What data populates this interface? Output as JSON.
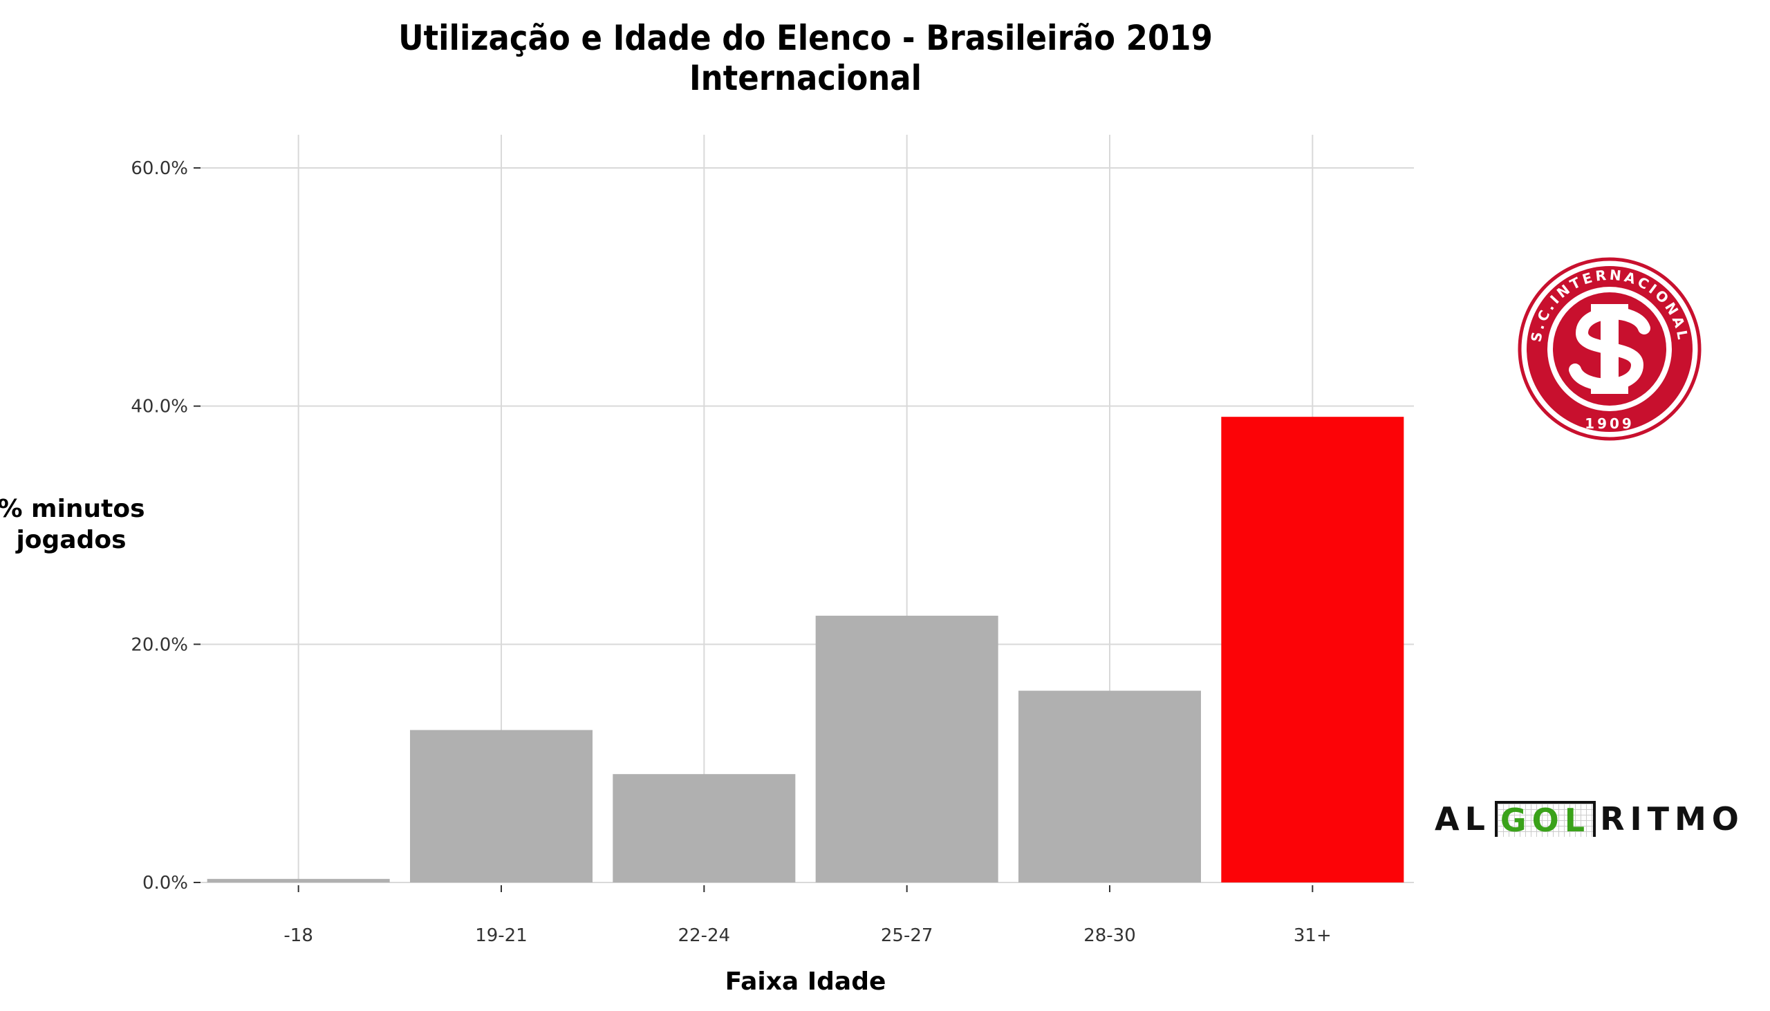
{
  "chart_data": {
    "type": "bar",
    "title": "Utilização e Idade do Elenco - Brasileirão 2019",
    "subtitle": "Internacional",
    "xlabel": "Faixa Idade",
    "ylabel_lines": [
      "% minutos",
      "jogados"
    ],
    "categories": [
      "-18",
      "19-21",
      "22-24",
      "25-27",
      "28-30",
      "31+"
    ],
    "values": [
      0.3,
      12.8,
      9.1,
      22.4,
      16.1,
      39.1
    ],
    "highlight_index": 5,
    "yticks": [
      0,
      20,
      40,
      60
    ],
    "ytick_labels": [
      "0.0%",
      "20.0%",
      "40.0%",
      "60.0%"
    ],
    "ylim": [
      0,
      63
    ],
    "grid": true,
    "colors": {
      "default_bar": "#b0b0b0",
      "highlight_bar": "#fc0307",
      "grid": "#d9d9d9"
    }
  },
  "logo": {
    "ring_text": "S.C.INTERNACIONAL",
    "year": "1909",
    "color": "#c8102e"
  },
  "brand": {
    "part1": "AL",
    "part2": "GOL",
    "part3": "RITMO"
  }
}
